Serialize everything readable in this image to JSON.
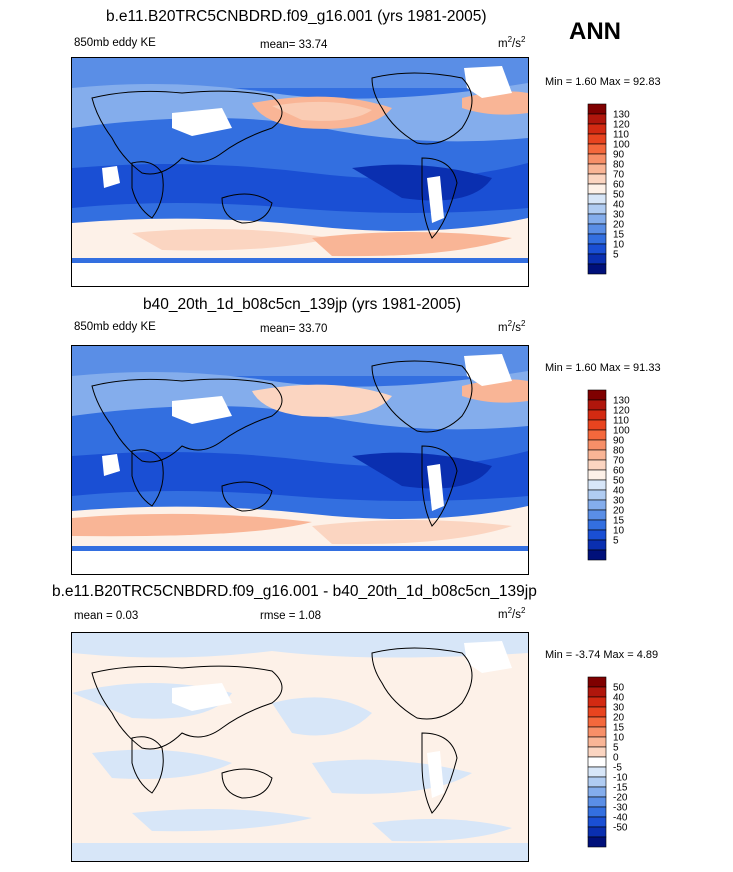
{
  "season": "ANN",
  "units_base": "m",
  "units_sup1": "2",
  "units_mid": "/s",
  "units_sup2": "2",
  "panels": [
    {
      "title": "b.e11.B20TRC5CNBDRD.f09_g16.001 (yrs 1981-2005)",
      "left_label": "850mb eddy KE",
      "center_label": "mean=  33.74",
      "min": "1.60",
      "max": "92.83",
      "minmax_text": "Min =   1.60 Max =  92.83"
    },
    {
      "title": "b40_20th_1d_b08c5cn_139jp (yrs 1981-2005)",
      "left_label": "850mb eddy KE",
      "center_label": "mean=  33.70",
      "min": "1.60",
      "max": "91.33",
      "minmax_text": "Min =   1.60 Max =  91.33"
    },
    {
      "title": "b.e11.B20TRC5CNBDRD.f09_g16.001 - b40_20th_1d_b08c5cn_139jp",
      "left_label": "mean =   0.03",
      "center_label": "rmse =   1.08",
      "min": "-3.74",
      "max": "4.89",
      "minmax_text": "Min =  -3.74 Max =   4.89"
    }
  ],
  "colorbar_abs": {
    "levels": [
      "130",
      "120",
      "110",
      "100",
      "90",
      "80",
      "70",
      "60",
      "50",
      "40",
      "30",
      "20",
      "15",
      "10",
      "5"
    ],
    "colors": [
      "#7f0000",
      "#b0160c",
      "#d32a12",
      "#e8441f",
      "#f4683c",
      "#f78f68",
      "#f9b596",
      "#fbd5c1",
      "#fdf1e8",
      "#d7e6f8",
      "#b0ccf2",
      "#84adec",
      "#5a8ee6",
      "#336fe0",
      "#1a4fd4",
      "#0a2fb0",
      "#00107a"
    ]
  },
  "colorbar_diff": {
    "levels": [
      "50",
      "40",
      "30",
      "20",
      "15",
      "10",
      "5",
      "0",
      "-5",
      "-10",
      "-15",
      "-20",
      "-30",
      "-40",
      "-50"
    ],
    "colors": [
      "#7f0000",
      "#b0160c",
      "#d32a12",
      "#e8441f",
      "#f4683c",
      "#f78f68",
      "#f9b596",
      "#fbd5c1",
      "#ffffff",
      "#d7e6f8",
      "#b0ccf2",
      "#84adec",
      "#5a8ee6",
      "#336fe0",
      "#1a4fd4",
      "#0a2fb0",
      "#00107a"
    ]
  }
}
